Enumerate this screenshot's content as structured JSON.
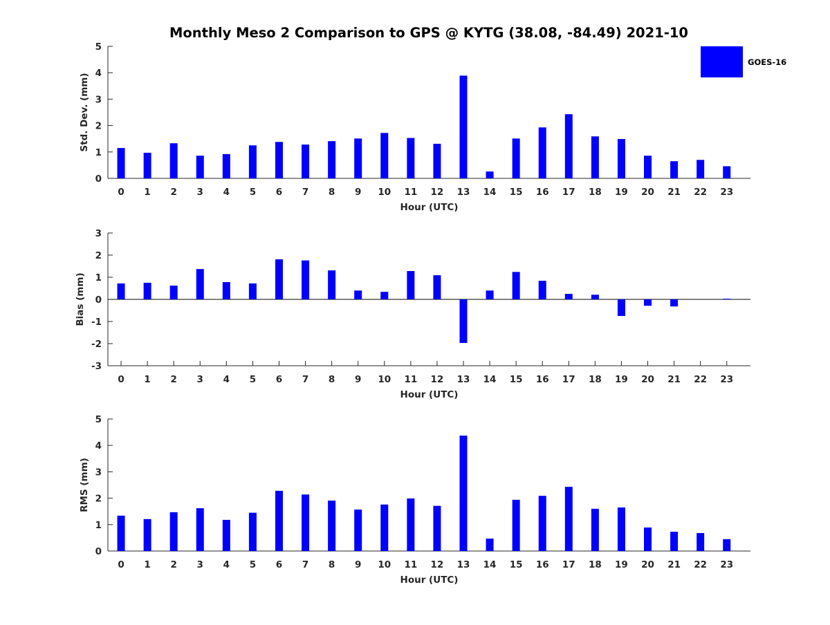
{
  "chart_data": {
    "type": "bar",
    "title": "Monthly Meso 2 Comparison to GPS @ KYTG (38.08, -84.49) 2021-10",
    "legend": {
      "entries": [
        "GOES-16"
      ],
      "placement": "top-right"
    },
    "bar_color": "#0000ff",
    "categories": [
      "0",
      "1",
      "2",
      "3",
      "4",
      "5",
      "6",
      "7",
      "8",
      "9",
      "10",
      "11",
      "12",
      "13",
      "14",
      "15",
      "16",
      "17",
      "18",
      "19",
      "20",
      "21",
      "22",
      "23"
    ],
    "panels": [
      {
        "name": "std-dev",
        "xlabel": "Hour (UTC)",
        "ylabel": "Std. Dev. (mm)",
        "ylim": [
          0,
          5
        ],
        "yticks": [
          0,
          1,
          2,
          3,
          4,
          5
        ],
        "series": [
          {
            "name": "GOES-16",
            "values": [
              1.15,
              0.97,
              1.33,
              0.86,
              0.92,
              1.25,
              1.38,
              1.28,
              1.41,
              1.51,
              1.72,
              1.53,
              1.31,
              3.89,
              0.26,
              1.51,
              1.93,
              2.43,
              1.59,
              1.49,
              0.86,
              0.65,
              0.7,
              0.46
            ]
          }
        ]
      },
      {
        "name": "bias",
        "xlabel": "Hour (UTC)",
        "ylabel": "Bias (mm)",
        "ylim": [
          -3,
          3
        ],
        "yticks": [
          -3,
          -2,
          -1,
          0,
          1,
          2,
          3
        ],
        "series": [
          {
            "name": "GOES-16",
            "values": [
              0.72,
              0.75,
              0.62,
              1.37,
              0.78,
              0.72,
              1.81,
              1.76,
              1.31,
              0.4,
              0.34,
              1.28,
              1.09,
              -1.97,
              0.4,
              1.24,
              0.84,
              0.25,
              0.21,
              -0.75,
              -0.29,
              -0.32,
              0.0,
              0.03
            ]
          }
        ]
      },
      {
        "name": "rms",
        "xlabel": "Hour (UTC)",
        "ylabel": "RMS (mm)",
        "ylim": [
          0,
          5
        ],
        "yticks": [
          0,
          1,
          2,
          3,
          4,
          5
        ],
        "series": [
          {
            "name": "GOES-16",
            "values": [
              1.34,
              1.21,
              1.47,
              1.62,
              1.18,
              1.45,
              2.28,
              2.14,
              1.91,
              1.57,
              1.76,
              1.99,
              1.71,
              4.37,
              0.47,
              1.94,
              2.09,
              2.43,
              1.6,
              1.65,
              0.89,
              0.73,
              0.68,
              0.45
            ]
          }
        ]
      }
    ]
  }
}
